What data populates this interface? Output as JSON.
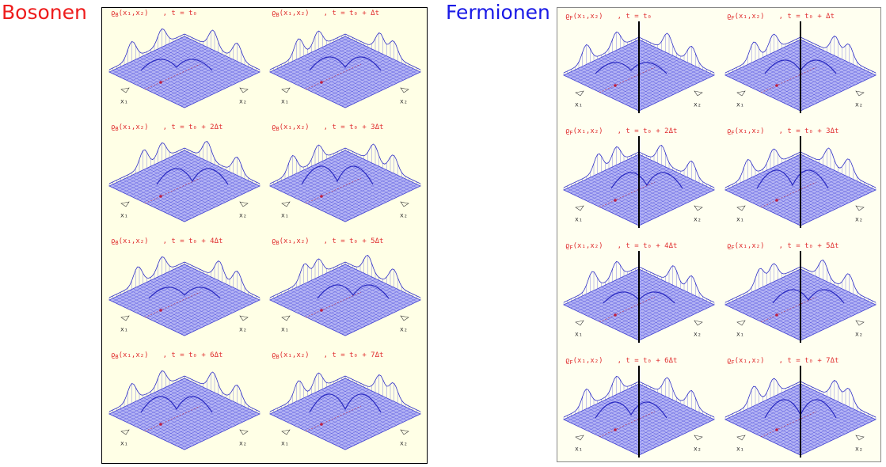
{
  "bosons": {
    "title": "Bosonen",
    "symbol": "ϱ",
    "index": "B",
    "args": "(x₁,x₂)",
    "axis_labels": [
      "x₁",
      "x₂"
    ],
    "times": [
      ", t = t₀",
      ", t = t₀ + Δt",
      ", t = t₀ + 2Δt",
      ", t = t₀ + 3Δt",
      ", t = t₀ + 4Δt",
      ", t = t₀ + 5Δt",
      ", t = t₀ + 6Δt",
      ", t = t₀ + 7Δt"
    ]
  },
  "fermions": {
    "title": "Fermionen",
    "symbol": "ϱ",
    "index": "F",
    "args": "(x₁,x₂)",
    "axis_labels": [
      "x₁",
      "x₂"
    ],
    "times": [
      ", t = t₀",
      ", t = t₀ + Δt",
      ", t = t₀ + 2Δt",
      ", t = t₀ + 3Δt",
      ", t = t₀ + 4Δt",
      ", t = t₀ + 5Δt",
      ", t = t₀ + 6Δt",
      ", t = t₀ + 7Δt"
    ]
  }
}
